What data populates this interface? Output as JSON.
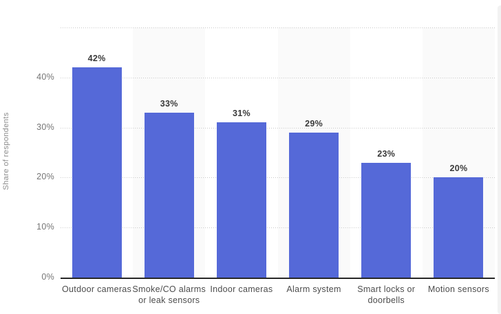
{
  "chart_data": {
    "type": "bar",
    "title": "",
    "categories": [
      "Outdoor cameras",
      "Smoke/CO alarms or leak sensors",
      "Indoor cameras",
      "Alarm system",
      "Smart locks or doorbells",
      "Motion sensors"
    ],
    "values": [
      42,
      33,
      31,
      29,
      23,
      20
    ],
    "value_labels": [
      "42%",
      "33%",
      "31%",
      "29%",
      "23%",
      "20%"
    ],
    "xlabel": "",
    "ylabel": "Share of respondents",
    "ylim": [
      0,
      50
    ],
    "yticks": [
      0,
      10,
      20,
      30,
      40
    ],
    "ytick_labels": [
      "0%",
      "10%",
      "20%",
      "30%",
      "40%"
    ],
    "gridlines": [
      10,
      20,
      30,
      40,
      50
    ],
    "grid": "horizontal-dotted",
    "legend": "none",
    "colors": {
      "bar": "#5569d8",
      "column_band": "#fafafa",
      "gridline": "#c8c8c8",
      "axis_line": "#262626",
      "tick_label": "#757575",
      "category_label": "#4c4c4c",
      "value_label": "#3a3a3a",
      "axis_title": "#8c8c8c",
      "background": "#ffffff"
    }
  }
}
